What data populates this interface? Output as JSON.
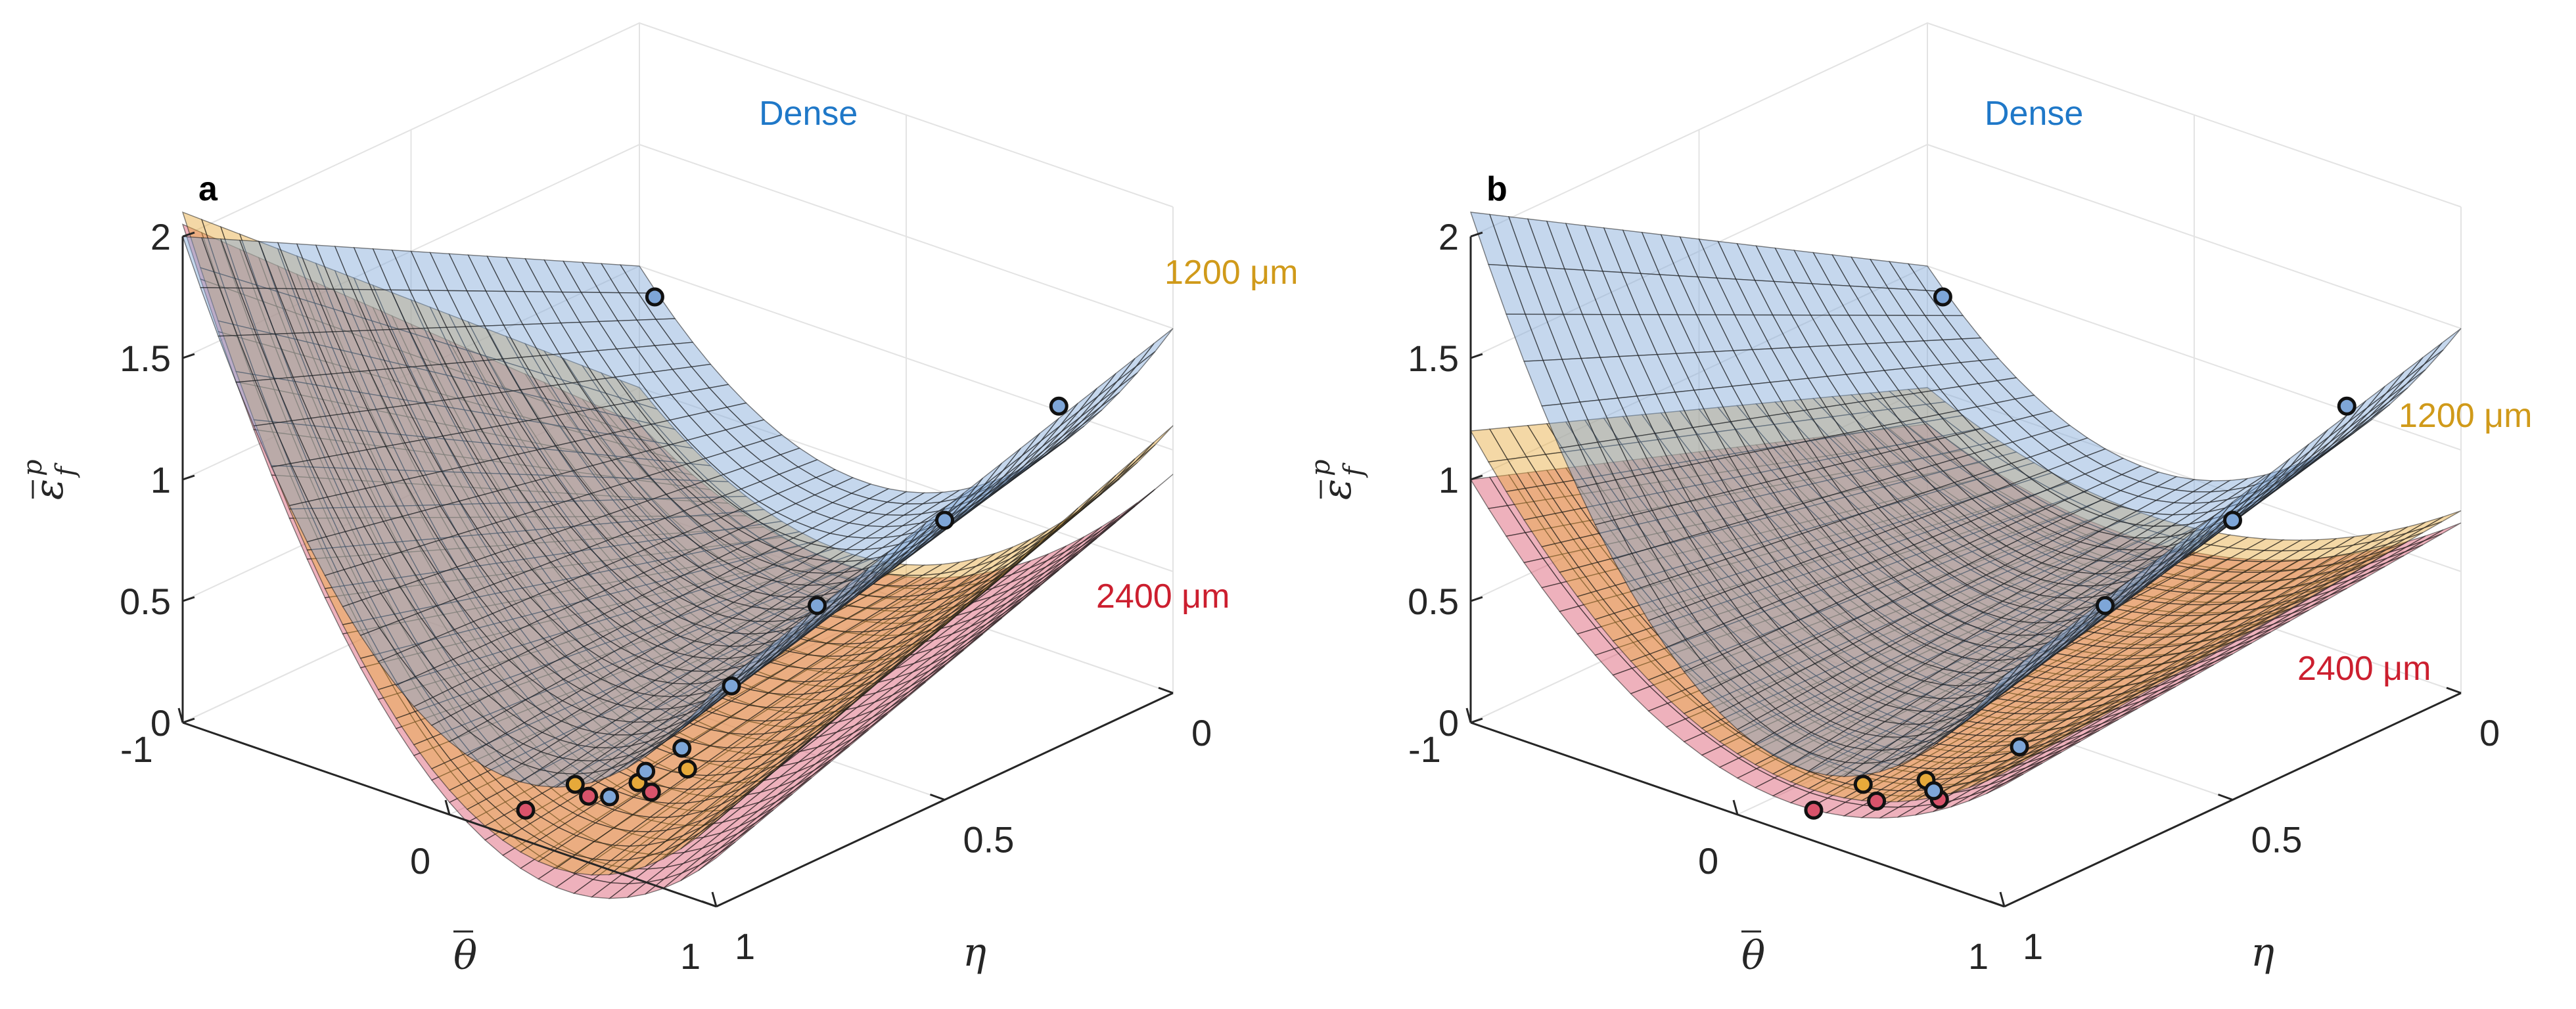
{
  "figure": {
    "panels": [
      {
        "letter": "a",
        "labels": {
          "dense": "Dense",
          "l1200": "1200 μm",
          "l2400": "2400 μm"
        }
      },
      {
        "letter": "b",
        "labels": {
          "dense": "Dense",
          "l1200": "1200 μm",
          "l2400": "2400 μm"
        }
      }
    ],
    "z_tick_labels": [
      "0",
      "0.5",
      "1",
      "1.5",
      "2"
    ],
    "theta_tick_labels": [
      "-1",
      "0",
      "1"
    ],
    "eta_tick_labels": [
      "0",
      "0.5",
      "1"
    ],
    "ylabel_main": "ε",
    "ylabel_sub": "f",
    "ylabel_sup": "p",
    "theta_label": "θ",
    "eta_label": "η"
  },
  "colors": {
    "dense": "#7ea6d8",
    "mid": "#e6a93a",
    "coarse": "#d9536b",
    "dense_text": "#1f78c8",
    "mid_text": "#d09a1a",
    "coarse_text": "#cc1f2f"
  },
  "chart_data": [
    {
      "panel": "a",
      "type": "surface3d",
      "x_axis": "η",
      "x_range": [
        0,
        1
      ],
      "y_axis": "θ̄",
      "y_range": [
        -1,
        1
      ],
      "z_axis": "ε̄_f^p",
      "z_range": [
        0,
        2
      ],
      "series": [
        {
          "name": "Dense",
          "z_at_theta_eta": {
            "theta": [
              -1,
              0,
              1
            ],
            "eta_0": [
              1.0,
              0.45,
              1.5
            ],
            "eta_1": [
              2.0,
              0.3,
              0.9
            ]
          },
          "points": [
            [
              -0.6,
              0.2,
              1.2
            ],
            [
              1.0,
              0.25,
              1.4
            ],
            [
              1.0,
              0.5,
              1.15
            ],
            [
              0.95,
              0.75,
              1.0
            ],
            [
              0.8,
              0.85,
              0.7
            ],
            [
              0.7,
              0.9,
              0.45
            ],
            [
              0.65,
              0.95,
              0.38
            ],
            [
              0.6,
              1.0,
              0.3
            ]
          ]
        },
        {
          "name": "1200 μm",
          "z_at_theta_eta": {
            "theta": [
              -1,
              0,
              1
            ],
            "eta_0": [
              0.5,
              0.15,
              1.1
            ],
            "eta_1": [
              2.1,
              0.1,
              0.35
            ]
          },
          "points": [
            [
              0.3,
              0.9,
              0.15
            ],
            [
              0.45,
              0.85,
              0.17
            ],
            [
              0.55,
              0.8,
              0.22
            ]
          ]
        },
        {
          "name": "2400 μm",
          "z_at_theta_eta": {
            "theta": [
              -1,
              0,
              1
            ],
            "eta_0": [
              0.35,
              0.1,
              0.9
            ],
            "eta_1": [
              2.05,
              0.05,
              0.2
            ]
          },
          "points": [
            [
              0.2,
              0.95,
              0.05
            ],
            [
              0.35,
              0.9,
              0.12
            ],
            [
              0.5,
              0.85,
              0.15
            ]
          ]
        }
      ]
    },
    {
      "panel": "b",
      "type": "surface3d",
      "x_axis": "η",
      "x_range": [
        0,
        1
      ],
      "y_axis": "θ̄",
      "y_range": [
        -1,
        1
      ],
      "z_axis": "ε̄_f^p",
      "z_range": [
        0,
        2
      ],
      "series": [
        {
          "name": "Dense",
          "z_at_theta_eta": {
            "theta": [
              -1,
              0,
              1
            ],
            "eta_0": [
              1.0,
              0.5,
              1.5
            ],
            "eta_1": [
              2.1,
              0.35,
              0.95
            ]
          },
          "points": [
            [
              -0.6,
              0.2,
              1.2
            ],
            [
              1.0,
              0.25,
              1.4
            ],
            [
              1.0,
              0.5,
              1.15
            ],
            [
              0.95,
              0.75,
              1.0
            ],
            [
              0.8,
              0.85,
              0.45
            ],
            [
              0.65,
              0.95,
              0.3
            ]
          ]
        },
        {
          "name": "1200 μm",
          "z_at_theta_eta": {
            "theta": [
              -1,
              0,
              1
            ],
            "eta_0": [
              0.5,
              0.3,
              0.75
            ],
            "eta_1": [
              1.2,
              0.25,
              0.55
            ]
          },
          "points": [
            [
              0.3,
              0.9,
              0.15
            ],
            [
              0.45,
              0.85,
              0.18
            ]
          ]
        },
        {
          "name": "2400 μm",
          "z_at_theta_eta": {
            "theta": [
              -1,
              0,
              1
            ],
            "eta_0": [
              0.35,
              0.2,
              0.7
            ],
            "eta_1": [
              1.0,
              0.15,
              0.5
            ]
          },
          "points": [
            [
              0.2,
              0.95,
              0.05
            ],
            [
              0.35,
              0.9,
              0.1
            ],
            [
              0.5,
              0.85,
              0.12
            ]
          ]
        }
      ]
    }
  ]
}
